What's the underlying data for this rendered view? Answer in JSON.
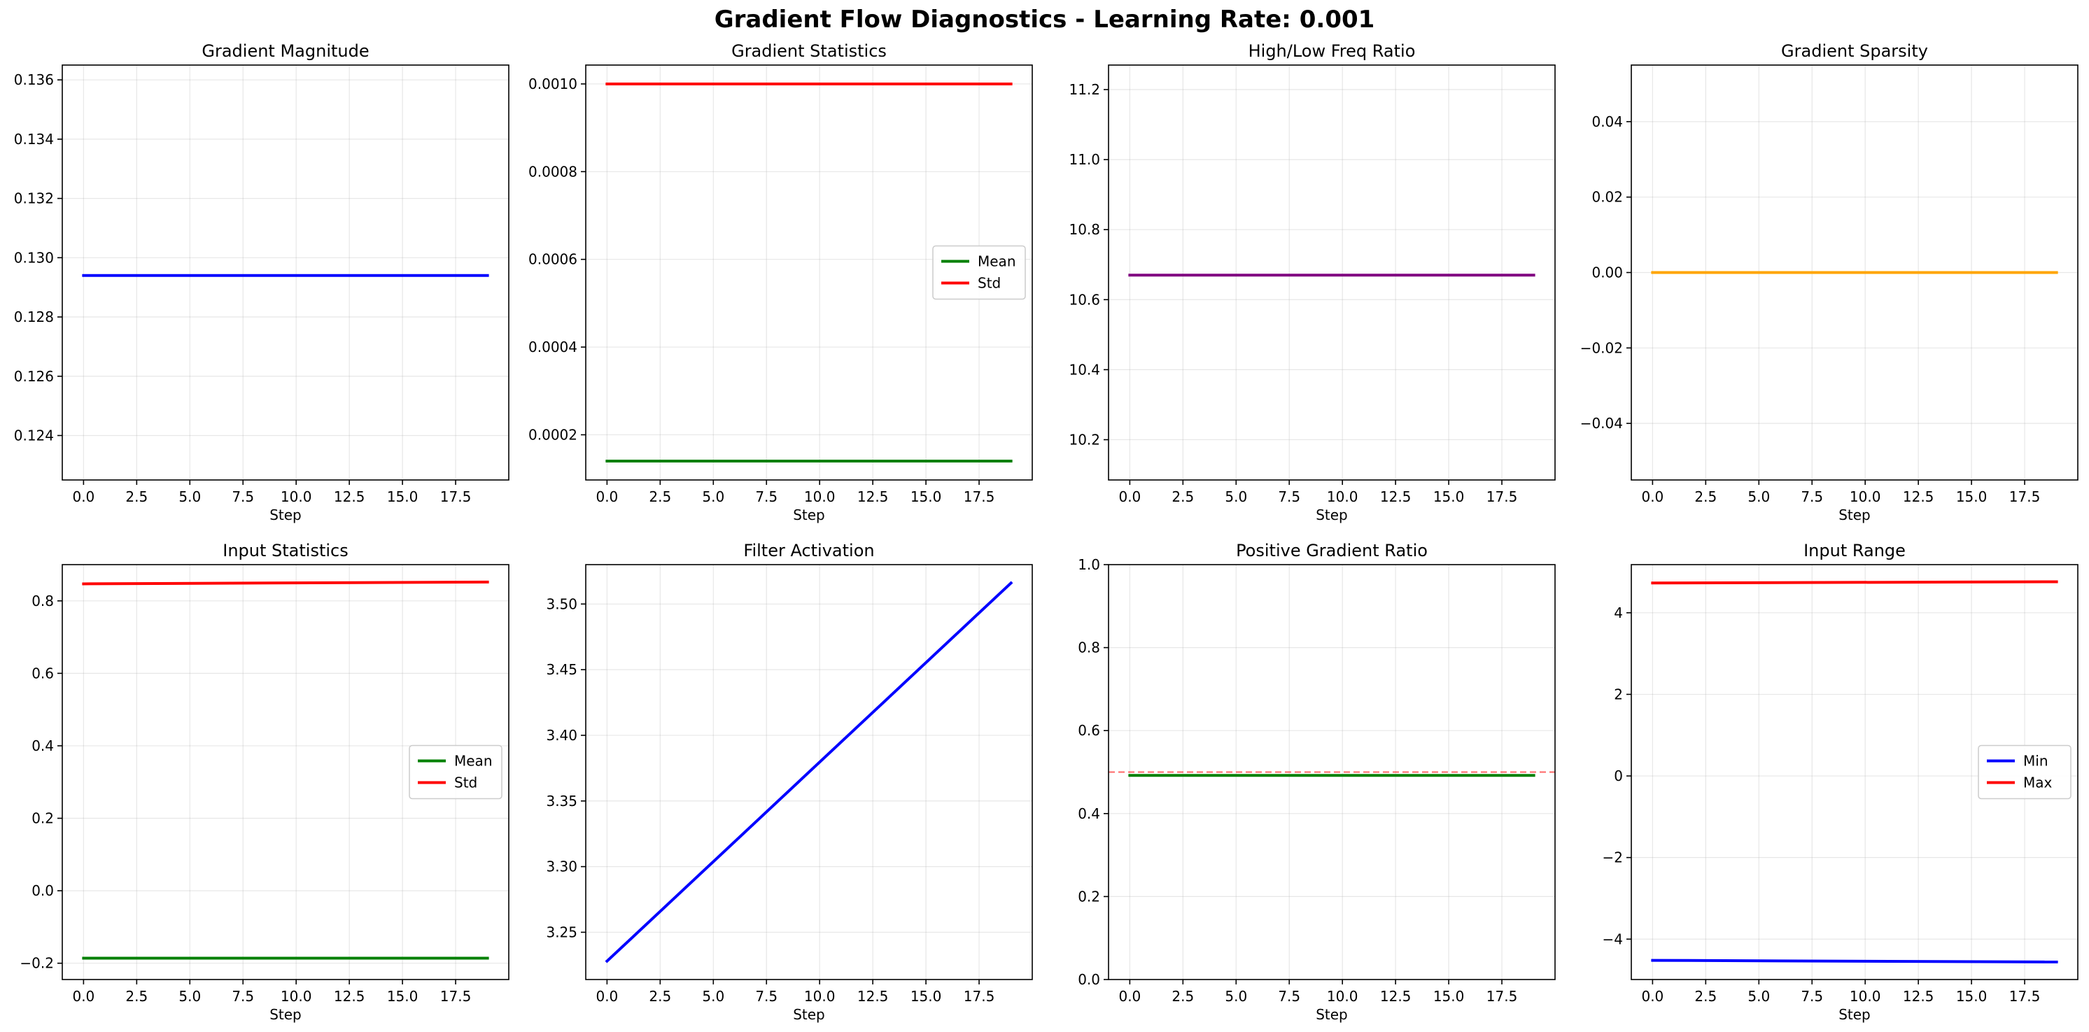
{
  "figure_title": "Gradient Flow Diagnostics - Learning Rate: 0.001",
  "chart_data": [
    {
      "id": "grad-magnitude",
      "type": "line",
      "title": "Gradient Magnitude",
      "xlabel": "Step",
      "ylabel": "",
      "xlim": [
        -1,
        20
      ],
      "ylim": [
        0.1225,
        0.1365
      ],
      "xticks": [
        0,
        2.5,
        5,
        7.5,
        10,
        12.5,
        15,
        17.5
      ],
      "xtick_labels": [
        "0.0",
        "2.5",
        "5.0",
        "7.5",
        "10.0",
        "12.5",
        "15.0",
        "17.5"
      ],
      "yticks": [
        0.124,
        0.126,
        0.128,
        0.13,
        0.132,
        0.134,
        0.136
      ],
      "ytick_labels": [
        "0.124",
        "0.126",
        "0.128",
        "0.130",
        "0.132",
        "0.134",
        "0.136"
      ],
      "grid": true,
      "legend": null,
      "series": [
        {
          "color": "#0000ff",
          "x": [
            0,
            19
          ],
          "y": [
            0.1294,
            0.1294
          ]
        }
      ]
    },
    {
      "id": "grad-statistics",
      "type": "line",
      "title": "Gradient Statistics",
      "xlabel": "Step",
      "ylabel": "",
      "xlim": [
        -1,
        20
      ],
      "ylim": [
        9.7e-05,
        0.001043
      ],
      "xticks": [
        0,
        2.5,
        5,
        7.5,
        10,
        12.5,
        15,
        17.5
      ],
      "xtick_labels": [
        "0.0",
        "2.5",
        "5.0",
        "7.5",
        "10.0",
        "12.5",
        "15.0",
        "17.5"
      ],
      "yticks": [
        0.0002,
        0.0004,
        0.0006,
        0.0008,
        0.001
      ],
      "ytick_labels": [
        "0.0002",
        "0.0004",
        "0.0006",
        "0.0008",
        "0.0010"
      ],
      "grid": true,
      "legend": "center right",
      "series": [
        {
          "name": "Mean",
          "color": "#008000",
          "x": [
            0,
            19
          ],
          "y": [
            0.00014,
            0.00014
          ]
        },
        {
          "name": "Std",
          "color": "#ff0000",
          "x": [
            0,
            19
          ],
          "y": [
            0.001,
            0.001
          ]
        }
      ]
    },
    {
      "id": "freq-ratio",
      "type": "line",
      "title": "High/Low Freq Ratio",
      "xlabel": "Step",
      "ylabel": "",
      "xlim": [
        -1,
        20
      ],
      "ylim": [
        10.085,
        11.27
      ],
      "xticks": [
        0,
        2.5,
        5,
        7.5,
        10,
        12.5,
        15,
        17.5
      ],
      "xtick_labels": [
        "0.0",
        "2.5",
        "5.0",
        "7.5",
        "10.0",
        "12.5",
        "15.0",
        "17.5"
      ],
      "yticks": [
        10.2,
        10.4,
        10.6,
        10.8,
        11.0,
        11.2
      ],
      "ytick_labels": [
        "10.2",
        "10.4",
        "10.6",
        "10.8",
        "11.0",
        "11.2"
      ],
      "grid": true,
      "legend": null,
      "series": [
        {
          "color": "#800080",
          "x": [
            0,
            19
          ],
          "y": [
            10.67,
            10.67
          ]
        }
      ]
    },
    {
      "id": "grad-sparsity",
      "type": "line",
      "title": "Gradient Sparsity",
      "xlabel": "Step",
      "ylabel": "",
      "xlim": [
        -1,
        20
      ],
      "ylim": [
        -0.055,
        0.055
      ],
      "xticks": [
        0,
        2.5,
        5,
        7.5,
        10,
        12.5,
        15,
        17.5
      ],
      "xtick_labels": [
        "0.0",
        "2.5",
        "5.0",
        "7.5",
        "10.0",
        "12.5",
        "15.0",
        "17.5"
      ],
      "yticks": [
        -0.04,
        -0.02,
        0.0,
        0.02,
        0.04
      ],
      "ytick_labels": [
        "−0.04",
        "−0.02",
        "0.00",
        "0.02",
        "0.04"
      ],
      "grid": true,
      "legend": null,
      "series": [
        {
          "color": "#ffa500",
          "x": [
            0,
            19
          ],
          "y": [
            0.0,
            0.0
          ]
        }
      ]
    },
    {
      "id": "input-statistics",
      "type": "line",
      "title": "Input Statistics",
      "xlabel": "Step",
      "ylabel": "",
      "xlim": [
        -1,
        20
      ],
      "ylim": [
        -0.245,
        0.9
      ],
      "xticks": [
        0,
        2.5,
        5,
        7.5,
        10,
        12.5,
        15,
        17.5
      ],
      "xtick_labels": [
        "0.0",
        "2.5",
        "5.0",
        "7.5",
        "10.0",
        "12.5",
        "15.0",
        "17.5"
      ],
      "yticks": [
        -0.2,
        0.0,
        0.2,
        0.4,
        0.6,
        0.8
      ],
      "ytick_labels": [
        "−0.2",
        "0.0",
        "0.2",
        "0.4",
        "0.6",
        "0.8"
      ],
      "grid": true,
      "legend": "center right",
      "series": [
        {
          "name": "Mean",
          "color": "#008000",
          "x": [
            0,
            19
          ],
          "y": [
            -0.186,
            -0.186
          ]
        },
        {
          "name": "Std",
          "color": "#ff0000",
          "x": [
            0,
            19
          ],
          "y": [
            0.847,
            0.852
          ]
        }
      ]
    },
    {
      "id": "filter-activation",
      "type": "line",
      "title": "Filter Activation",
      "xlabel": "Step",
      "ylabel": "",
      "xlim": [
        -1,
        20
      ],
      "ylim": [
        3.214,
        3.53
      ],
      "xticks": [
        0,
        2.5,
        5,
        7.5,
        10,
        12.5,
        15,
        17.5
      ],
      "xtick_labels": [
        "0.0",
        "2.5",
        "5.0",
        "7.5",
        "10.0",
        "12.5",
        "15.0",
        "17.5"
      ],
      "yticks": [
        3.25,
        3.3,
        3.35,
        3.4,
        3.45,
        3.5
      ],
      "ytick_labels": [
        "3.25",
        "3.30",
        "3.35",
        "3.40",
        "3.45",
        "3.50"
      ],
      "grid": true,
      "legend": null,
      "series": [
        {
          "color": "#0000ff",
          "x": [
            0,
            19
          ],
          "y": [
            3.228,
            3.516
          ]
        }
      ]
    },
    {
      "id": "positive-grad-ratio",
      "type": "line",
      "title": "Positive Gradient Ratio",
      "xlabel": "Step",
      "ylabel": "",
      "xlim": [
        -1,
        20
      ],
      "ylim": [
        0.0,
        1.0
      ],
      "xticks": [
        0,
        2.5,
        5,
        7.5,
        10,
        12.5,
        15,
        17.5
      ],
      "xtick_labels": [
        "0.0",
        "2.5",
        "5.0",
        "7.5",
        "10.0",
        "12.5",
        "15.0",
        "17.5"
      ],
      "yticks": [
        0.0,
        0.2,
        0.4,
        0.6,
        0.8,
        1.0
      ],
      "ytick_labels": [
        "0.0",
        "0.2",
        "0.4",
        "0.6",
        "0.8",
        "1.0"
      ],
      "grid": true,
      "legend": null,
      "reference_line": {
        "y": 0.5,
        "color": "#ff0000",
        "style": "dashed"
      },
      "series": [
        {
          "color": "#008000",
          "x": [
            0,
            19
          ],
          "y": [
            0.492,
            0.492
          ]
        }
      ]
    },
    {
      "id": "input-range",
      "type": "line",
      "title": "Input Range",
      "xlabel": "Step",
      "ylabel": "",
      "xlim": [
        -1,
        20
      ],
      "ylim": [
        -4.99,
        5.18
      ],
      "xticks": [
        0,
        2.5,
        5,
        7.5,
        10,
        12.5,
        15,
        17.5
      ],
      "xtick_labels": [
        "0.0",
        "2.5",
        "5.0",
        "7.5",
        "10.0",
        "12.5",
        "15.0",
        "17.5"
      ],
      "yticks": [
        -4,
        -2,
        0,
        2,
        4
      ],
      "ytick_labels": [
        "−4",
        "−2",
        "0",
        "2",
        "4"
      ],
      "grid": true,
      "legend": "center right",
      "series": [
        {
          "name": "Min",
          "color": "#0000ff",
          "x": [
            0,
            19
          ],
          "y": [
            -4.52,
            -4.56
          ]
        },
        {
          "name": "Max",
          "color": "#ff0000",
          "x": [
            0,
            19
          ],
          "y": [
            4.73,
            4.76
          ]
        }
      ]
    }
  ]
}
